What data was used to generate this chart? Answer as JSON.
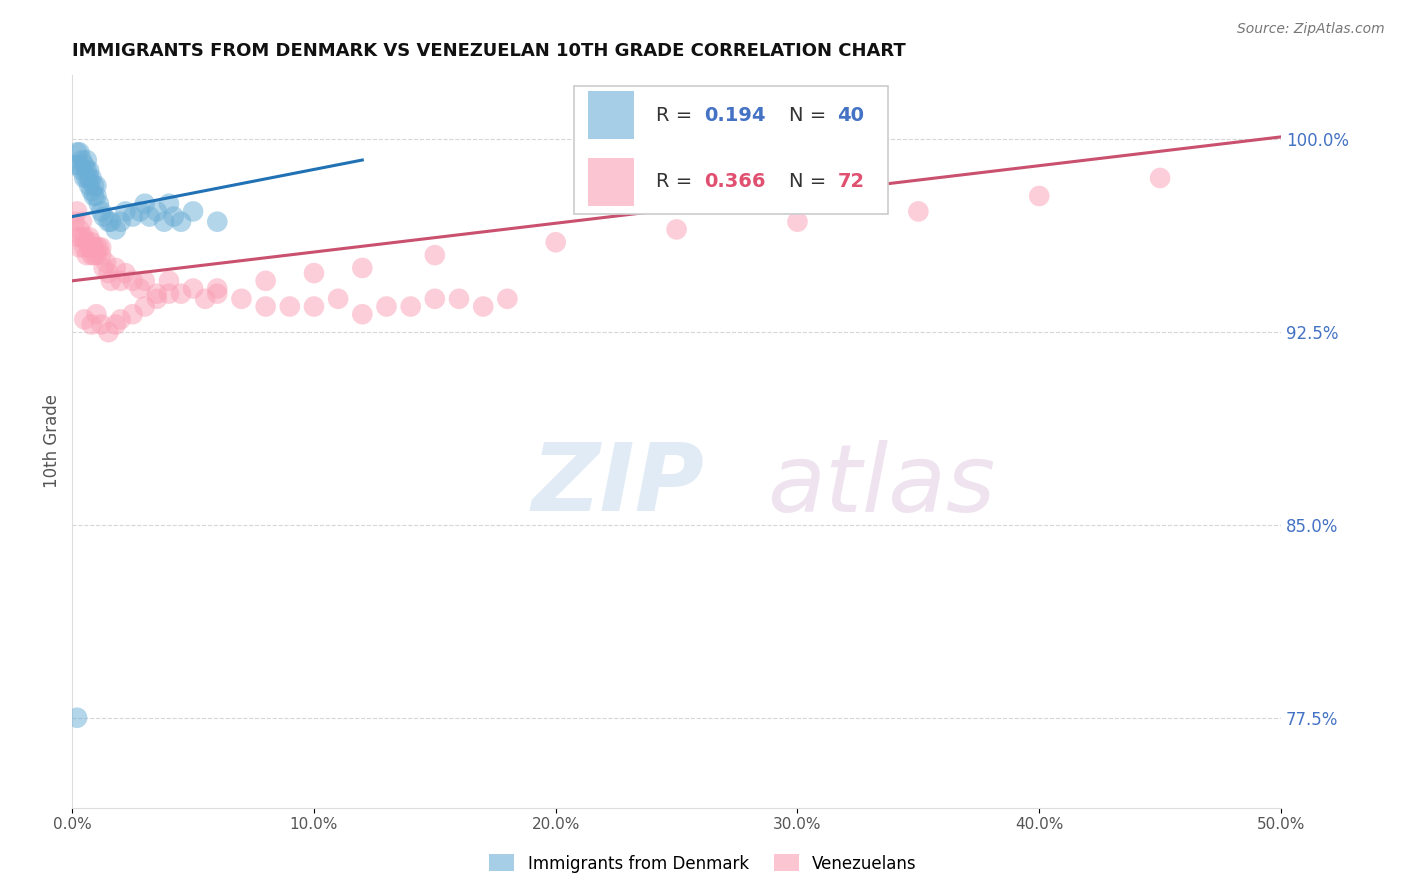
{
  "title": "IMMIGRANTS FROM DENMARK VS VENEZUELAN 10TH GRADE CORRELATION CHART",
  "source": "Source: ZipAtlas.com",
  "ylabel": "10th Grade",
  "legend_label_blue": "Immigrants from Denmark",
  "legend_label_pink": "Venezuelans",
  "blue_color": "#6baed6",
  "pink_color": "#fa9fb5",
  "blue_line_color": "#2171b5",
  "pink_line_color": "#c9506e",
  "background_color": "#ffffff",
  "grid_color": "#cccccc",
  "R_blue": 0.194,
  "N_blue": 40,
  "R_pink": 0.366,
  "N_pink": 72,
  "blue_scatter_x": [
    0.001,
    0.002,
    0.003,
    0.003,
    0.004,
    0.004,
    0.005,
    0.005,
    0.006,
    0.006,
    0.006,
    0.007,
    0.007,
    0.007,
    0.008,
    0.008,
    0.009,
    0.009,
    0.01,
    0.01,
    0.011,
    0.012,
    0.013,
    0.015,
    0.016,
    0.018,
    0.02,
    0.022,
    0.025,
    0.028,
    0.03,
    0.032,
    0.035,
    0.038,
    0.04,
    0.042,
    0.045,
    0.05,
    0.06,
    0.002
  ],
  "blue_scatter_y": [
    0.99,
    0.995,
    0.995,
    0.99,
    0.992,
    0.988,
    0.99,
    0.985,
    0.988,
    0.985,
    0.992,
    0.985,
    0.988,
    0.982,
    0.98,
    0.985,
    0.978,
    0.982,
    0.978,
    0.982,
    0.975,
    0.972,
    0.97,
    0.968,
    0.968,
    0.965,
    0.968,
    0.972,
    0.97,
    0.972,
    0.975,
    0.97,
    0.972,
    0.968,
    0.975,
    0.97,
    0.968,
    0.972,
    0.968,
    0.775
  ],
  "pink_scatter_x": [
    0.001,
    0.002,
    0.002,
    0.003,
    0.003,
    0.004,
    0.004,
    0.005,
    0.005,
    0.006,
    0.006,
    0.007,
    0.007,
    0.008,
    0.008,
    0.009,
    0.009,
    0.01,
    0.01,
    0.011,
    0.012,
    0.012,
    0.013,
    0.014,
    0.015,
    0.016,
    0.018,
    0.02,
    0.022,
    0.025,
    0.028,
    0.03,
    0.035,
    0.04,
    0.045,
    0.05,
    0.055,
    0.06,
    0.07,
    0.08,
    0.09,
    0.1,
    0.11,
    0.12,
    0.13,
    0.14,
    0.15,
    0.16,
    0.17,
    0.18,
    0.005,
    0.008,
    0.01,
    0.012,
    0.015,
    0.018,
    0.02,
    0.025,
    0.03,
    0.035,
    0.04,
    0.06,
    0.08,
    0.1,
    0.12,
    0.15,
    0.2,
    0.25,
    0.3,
    0.35,
    0.4,
    0.45
  ],
  "pink_scatter_y": [
    0.968,
    0.962,
    0.972,
    0.965,
    0.958,
    0.968,
    0.962,
    0.962,
    0.958,
    0.96,
    0.955,
    0.958,
    0.962,
    0.955,
    0.96,
    0.955,
    0.958,
    0.955,
    0.958,
    0.958,
    0.955,
    0.958,
    0.95,
    0.952,
    0.948,
    0.945,
    0.95,
    0.945,
    0.948,
    0.945,
    0.942,
    0.945,
    0.94,
    0.945,
    0.94,
    0.942,
    0.938,
    0.94,
    0.938,
    0.935,
    0.935,
    0.935,
    0.938,
    0.932,
    0.935,
    0.935,
    0.938,
    0.938,
    0.935,
    0.938,
    0.93,
    0.928,
    0.932,
    0.928,
    0.925,
    0.928,
    0.93,
    0.932,
    0.935,
    0.938,
    0.94,
    0.942,
    0.945,
    0.948,
    0.95,
    0.955,
    0.96,
    0.965,
    0.968,
    0.972,
    0.978,
    0.985
  ],
  "xlim": [
    0.0,
    0.5
  ],
  "ylim": [
    0.74,
    1.025
  ],
  "blue_line_x": [
    0.0,
    0.12
  ],
  "blue_line_y": [
    0.97,
    0.992
  ],
  "pink_line_x": [
    0.0,
    0.5
  ],
  "pink_line_y": [
    0.945,
    1.001
  ],
  "ytick_right_positions": [
    1.0,
    0.925,
    0.85,
    0.775
  ],
  "ytick_right_labels": [
    "100.0%",
    "92.5%",
    "85.0%",
    "77.5%"
  ]
}
